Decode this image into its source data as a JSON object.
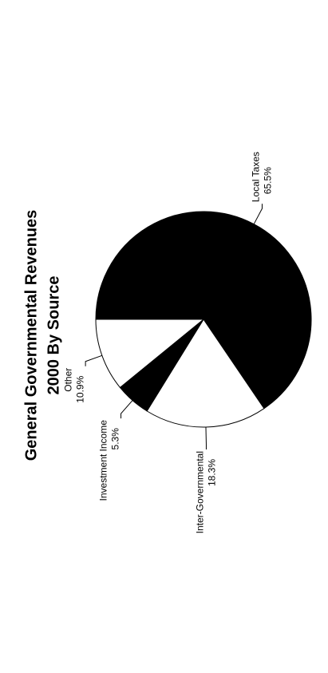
{
  "chart_data": {
    "type": "pie",
    "title": "General Governmental Revenues",
    "subtitle": "2000 By Source",
    "categories": [
      "Local Taxes",
      "Inter-Governmental",
      "Investment Income",
      "Other"
    ],
    "values": [
      65.5,
      18.3,
      5.3,
      10.9
    ],
    "value_labels": [
      "65.5%",
      "18.3%",
      "5.3%",
      "10.9%"
    ],
    "colors": [
      "#000000",
      "#ffffff",
      "#000000",
      "#ffffff"
    ]
  }
}
